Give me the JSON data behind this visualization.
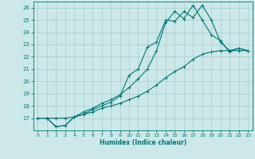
{
  "xlabel": "Humidex (Indice chaleur)",
  "xlim": [
    -0.5,
    23.5
  ],
  "ylim": [
    16.0,
    26.5
  ],
  "yticks": [
    17,
    18,
    19,
    20,
    21,
    22,
    23,
    24,
    25,
    26
  ],
  "xticks": [
    0,
    1,
    2,
    3,
    4,
    5,
    6,
    7,
    8,
    9,
    10,
    11,
    12,
    13,
    14,
    15,
    16,
    17,
    18,
    19,
    20,
    21,
    22,
    23
  ],
  "color": "#007878",
  "bg_color": "#cce8e8",
  "grid_color": "#aacccc",
  "line1_x": [
    0,
    1,
    2,
    3,
    4,
    5,
    6,
    7,
    8,
    9,
    10,
    11,
    12,
    13,
    14,
    15,
    16,
    17,
    18,
    19,
    20,
    21,
    22,
    23
  ],
  "line1_y": [
    17.0,
    17.0,
    16.3,
    16.4,
    17.1,
    17.3,
    17.7,
    18.0,
    18.3,
    18.8,
    20.5,
    21.0,
    22.8,
    23.2,
    25.0,
    24.9,
    25.7,
    25.2,
    26.2,
    25.0,
    23.2,
    22.5,
    22.7,
    22.5
  ],
  "line2_x": [
    0,
    1,
    2,
    3,
    4,
    5,
    6,
    7,
    8,
    9,
    10,
    11,
    12,
    13,
    14,
    15,
    16,
    17,
    18,
    19,
    20,
    21,
    22,
    23
  ],
  "line2_y": [
    17.0,
    17.0,
    16.3,
    16.4,
    17.1,
    17.5,
    17.8,
    18.2,
    18.5,
    18.9,
    19.5,
    20.2,
    21.0,
    22.5,
    24.8,
    25.7,
    25.1,
    26.2,
    25.0,
    23.8,
    23.3,
    22.4,
    22.7,
    22.5
  ],
  "line3_x": [
    0,
    1,
    2,
    3,
    4,
    5,
    6,
    7,
    8,
    9,
    10,
    11,
    12,
    13,
    14,
    15,
    16,
    17,
    18,
    19,
    20,
    21,
    22,
    23
  ],
  "line3_y": [
    17.0,
    17.0,
    17.0,
    17.0,
    17.1,
    17.3,
    17.5,
    17.8,
    18.0,
    18.2,
    18.5,
    18.8,
    19.2,
    19.7,
    20.3,
    20.8,
    21.2,
    21.8,
    22.2,
    22.4,
    22.5,
    22.5,
    22.5,
    22.5
  ],
  "markersize": 3,
  "linewidth": 0.8
}
